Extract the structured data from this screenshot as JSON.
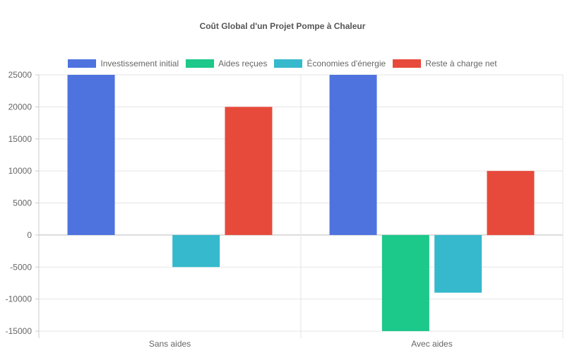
{
  "chart_data": {
    "type": "bar",
    "title": "Coût Global d'un Projet Pompe à Chaleur",
    "categories": [
      "Sans aides",
      "Avec aides"
    ],
    "series": [
      {
        "name": "Investissement initial",
        "color": "#4e73df",
        "values": [
          25000,
          25000
        ]
      },
      {
        "name": "Aides reçues",
        "color": "#1cc88a",
        "values": [
          0,
          -15000
        ]
      },
      {
        "name": "Économies d'énergie",
        "color": "#36b9cc",
        "values": [
          -5000,
          -9000
        ]
      },
      {
        "name": "Reste à charge net",
        "color": "#e74a3b",
        "values": [
          20000,
          10000
        ]
      }
    ],
    "ylim": [
      -15000,
      25000
    ],
    "yticks": [
      "25000",
      "20000",
      "15000",
      "10000",
      "5000",
      "0",
      "-5000",
      "-10000",
      "-15000"
    ],
    "xlabel": "",
    "ylabel": "",
    "grid": true,
    "legend_position": "top"
  }
}
